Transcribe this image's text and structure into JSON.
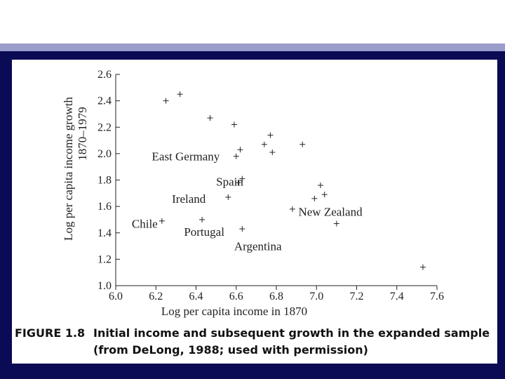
{
  "colors": {
    "stripe": "#9a9ccc",
    "frame": "#0a0a55",
    "ink": "#222222"
  },
  "chart_data": {
    "type": "scatter",
    "title": "",
    "xlabel": "Log per capita income in 1870",
    "ylabel": "Log per capita income growth",
    "ylabel2": "1870–1979",
    "xlim": [
      6.0,
      7.6
    ],
    "ylim": [
      1.0,
      2.6
    ],
    "xticks": [
      "6.0",
      "6.2",
      "6.4",
      "6.6",
      "6.8",
      "7.0",
      "7.2",
      "7.4",
      "7.6"
    ],
    "yticks": [
      "1.0",
      "1.2",
      "1.4",
      "1.6",
      "1.8",
      "2.0",
      "2.2",
      "2.4",
      "2.6"
    ],
    "grid": false,
    "points": [
      {
        "x": 6.25,
        "y": 2.4
      },
      {
        "x": 6.32,
        "y": 2.45
      },
      {
        "x": 6.47,
        "y": 2.27
      },
      {
        "x": 6.59,
        "y": 2.22
      },
      {
        "x": 6.6,
        "y": 1.98
      },
      {
        "x": 6.62,
        "y": 2.03
      },
      {
        "x": 6.74,
        "y": 2.07
      },
      {
        "x": 6.77,
        "y": 2.14
      },
      {
        "x": 6.78,
        "y": 2.01
      },
      {
        "x": 6.93,
        "y": 2.07
      },
      {
        "x": 6.61,
        "y": 1.78
      },
      {
        "x": 6.63,
        "y": 1.81
      },
      {
        "x": 6.56,
        "y": 1.67
      },
      {
        "x": 6.43,
        "y": 1.5
      },
      {
        "x": 6.23,
        "y": 1.49
      },
      {
        "x": 6.63,
        "y": 1.43
      },
      {
        "x": 6.88,
        "y": 1.58
      },
      {
        "x": 7.02,
        "y": 1.76
      },
      {
        "x": 7.04,
        "y": 1.69
      },
      {
        "x": 6.99,
        "y": 1.66
      },
      {
        "x": 7.1,
        "y": 1.47
      },
      {
        "x": 7.53,
        "y": 1.14
      }
    ],
    "annotations": [
      {
        "text": "East Germany",
        "x": 6.18,
        "y": 1.98
      },
      {
        "text": "Spain",
        "x": 6.5,
        "y": 1.79
      },
      {
        "text": "Ireland",
        "x": 6.28,
        "y": 1.66
      },
      {
        "text": "Chile",
        "x": 6.08,
        "y": 1.47
      },
      {
        "text": "Portugal",
        "x": 6.34,
        "y": 1.41
      },
      {
        "text": "New Zealand",
        "x": 6.91,
        "y": 1.56
      },
      {
        "text": "Argentina",
        "x": 6.59,
        "y": 1.3
      }
    ]
  },
  "caption": {
    "label": "FIGURE 1.8",
    "line1": "Initial income and subsequent growth in the expanded sample",
    "line2": "(from DeLong, 1988; used with permission)"
  }
}
